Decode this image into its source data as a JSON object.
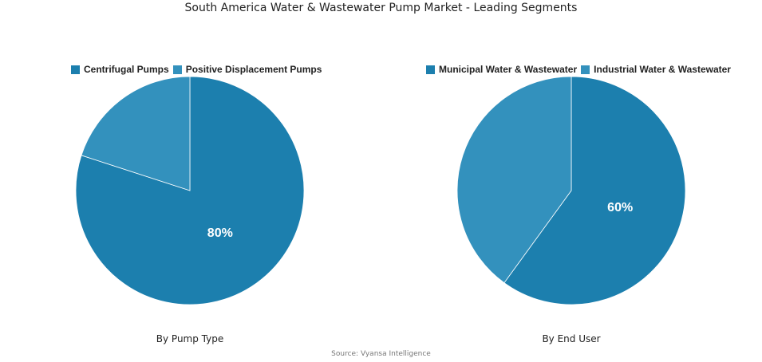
{
  "title": "South America Water & Wastewater Pump Market - Leading Segments",
  "source": "Source: Vyansa Intelligence",
  "chart_data": [
    {
      "type": "pie",
      "subtitle": "By Pump Type",
      "legend_position": "top",
      "slices": [
        {
          "name": "Centrifugal Pumps",
          "value": 80,
          "label": "80%",
          "color": "#1c7fae"
        },
        {
          "name": "Positive Displacement Pumps",
          "value": 20,
          "label": "",
          "color": "#3391bd"
        }
      ]
    },
    {
      "type": "pie",
      "subtitle": "By End User",
      "legend_position": "top",
      "slices": [
        {
          "name": "Municipal Water & Wastewater",
          "value": 60,
          "label": "60%",
          "color": "#1c7fae"
        },
        {
          "name": "Industrial Water & Wastewater",
          "value": 40,
          "label": "",
          "color": "#3391bd"
        }
      ]
    }
  ]
}
